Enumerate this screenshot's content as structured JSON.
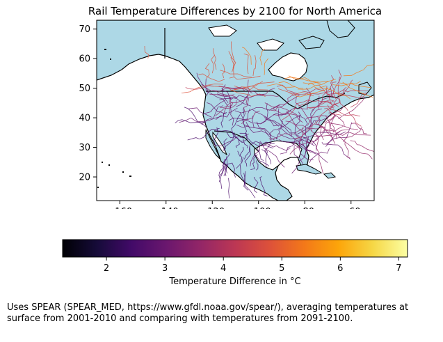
{
  "title": "Rail Temperature Differences by 2100 for North America",
  "map": {
    "x_ticks": [
      -160,
      -140,
      -120,
      -100,
      -80,
      -60
    ],
    "y_ticks": [
      20,
      30,
      40,
      50,
      60,
      70
    ],
    "lon_range": [
      -170,
      -50
    ],
    "lat_range": [
      12,
      73
    ],
    "land_color": "#add8e6",
    "coastline_color": "#000000",
    "rail_colormap": "inferno",
    "regions": [
      {
        "name": "Alaska",
        "icon": "landmass"
      },
      {
        "name": "Canada",
        "icon": "landmass"
      },
      {
        "name": "United States",
        "icon": "landmass"
      },
      {
        "name": "Mexico",
        "icon": "landmass"
      },
      {
        "name": "Caribbean islands",
        "icon": "landmass"
      }
    ]
  },
  "colorbar": {
    "ticks": [
      "2",
      "3",
      "4",
      "5",
      "6",
      "7"
    ],
    "tick_values": [
      2,
      3,
      4,
      5,
      6,
      7
    ],
    "range": [
      1.25,
      7.15
    ],
    "label": "Temperature Difference in °C",
    "colormap": "inferno"
  },
  "caption": "Uses SPEAR (SPEAR_MED, https://www.gfdl.noaa.gov/spear/), averaging temperatures at\nsurface from 2001-2010 and comparing with temperatures from 2091-2100."
}
